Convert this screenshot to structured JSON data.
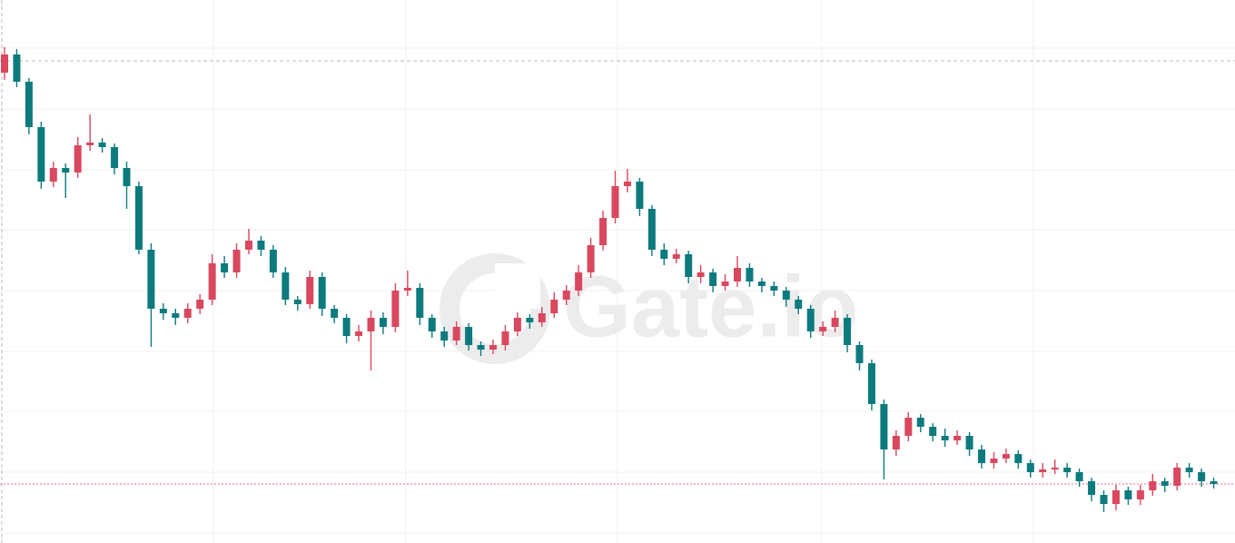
{
  "chart_data": {
    "type": "candlestick",
    "watermark": "Gate.io",
    "up_color": "#d9485f",
    "down_color": "#0d7b7e",
    "grid": true,
    "ylim": [
      0,
      598
    ],
    "yticks": [
      545,
      478,
      411,
      345,
      278,
      211,
      145,
      78,
      11
    ],
    "high_line": 531,
    "last_line": 65,
    "ohlc": [
      [
        518,
        546,
        510,
        538
      ],
      [
        538,
        544,
        502,
        508
      ],
      [
        508,
        512,
        450,
        458
      ],
      [
        458,
        464,
        390,
        398
      ],
      [
        398,
        420,
        392,
        413
      ],
      [
        413,
        418,
        380,
        408
      ],
      [
        408,
        447,
        402,
        438
      ],
      [
        438,
        472,
        432,
        441
      ],
      [
        441,
        446,
        430,
        436
      ],
      [
        436,
        440,
        406,
        413
      ],
      [
        413,
        420,
        368,
        393
      ],
      [
        393,
        398,
        318,
        323
      ],
      [
        323,
        330,
        216,
        258
      ],
      [
        258,
        264,
        246,
        253
      ],
      [
        253,
        258,
        240,
        248
      ],
      [
        248,
        264,
        242,
        258
      ],
      [
        258,
        274,
        252,
        268
      ],
      [
        268,
        318,
        262,
        308
      ],
      [
        308,
        316,
        292,
        298
      ],
      [
        298,
        330,
        292,
        323
      ],
      [
        323,
        346,
        318,
        333
      ],
      [
        333,
        338,
        316,
        323
      ],
      [
        323,
        328,
        292,
        298
      ],
      [
        298,
        304,
        262,
        268
      ],
      [
        268,
        272,
        256,
        263
      ],
      [
        263,
        300,
        258,
        293
      ],
      [
        293,
        298,
        250,
        258
      ],
      [
        258,
        262,
        242,
        248
      ],
      [
        248,
        252,
        220,
        228
      ],
      [
        228,
        240,
        222,
        233
      ],
      [
        233,
        256,
        190,
        248
      ],
      [
        248,
        254,
        230,
        238
      ],
      [
        238,
        286,
        232,
        278
      ],
      [
        278,
        300,
        272,
        281
      ],
      [
        281,
        286,
        240,
        248
      ],
      [
        248,
        252,
        226,
        233
      ],
      [
        233,
        238,
        216,
        223
      ],
      [
        223,
        244,
        218,
        238
      ],
      [
        238,
        242,
        212,
        218
      ],
      [
        218,
        222,
        206,
        213
      ],
      [
        213,
        224,
        208,
        218
      ],
      [
        218,
        240,
        212,
        233
      ],
      [
        233,
        254,
        228,
        248
      ],
      [
        248,
        252,
        236,
        243
      ],
      [
        243,
        260,
        238,
        253
      ],
      [
        253,
        276,
        248,
        268
      ],
      [
        268,
        284,
        262,
        278
      ],
      [
        278,
        306,
        272,
        298
      ],
      [
        298,
        336,
        292,
        328
      ],
      [
        328,
        366,
        322,
        358
      ],
      [
        358,
        410,
        352,
        393
      ],
      [
        393,
        412,
        386,
        398
      ],
      [
        398,
        402,
        360,
        368
      ],
      [
        368,
        372,
        316,
        323
      ],
      [
        323,
        330,
        306,
        313
      ],
      [
        313,
        324,
        308,
        318
      ],
      [
        318,
        322,
        286,
        293
      ],
      [
        293,
        306,
        286,
        298
      ],
      [
        298,
        302,
        276,
        283
      ],
      [
        283,
        296,
        278,
        288
      ],
      [
        288,
        316,
        282,
        303
      ],
      [
        303,
        308,
        282,
        288
      ],
      [
        288,
        292,
        276,
        283
      ],
      [
        283,
        288,
        272,
        278
      ],
      [
        278,
        282,
        260,
        268
      ],
      [
        268,
        272,
        252,
        258
      ],
      [
        258,
        262,
        226,
        233
      ],
      [
        233,
        244,
        228,
        238
      ],
      [
        238,
        256,
        232,
        248
      ],
      [
        248,
        252,
        210,
        218
      ],
      [
        218,
        222,
        190,
        198
      ],
      [
        198,
        202,
        146,
        153
      ],
      [
        153,
        158,
        70,
        103
      ],
      [
        103,
        124,
        96,
        118
      ],
      [
        118,
        144,
        112,
        138
      ],
      [
        138,
        142,
        122,
        128
      ],
      [
        128,
        132,
        112,
        118
      ],
      [
        118,
        126,
        106,
        113
      ],
      [
        113,
        124,
        108,
        118
      ],
      [
        118,
        122,
        96,
        103
      ],
      [
        103,
        108,
        82,
        88
      ],
      [
        88,
        100,
        82,
        93
      ],
      [
        93,
        104,
        88,
        98
      ],
      [
        98,
        102,
        82,
        88
      ],
      [
        88,
        92,
        72,
        78
      ],
      [
        78,
        88,
        72,
        81
      ],
      [
        81,
        92,
        76,
        83
      ],
      [
        83,
        88,
        72,
        78
      ],
      [
        78,
        82,
        62,
        68
      ],
      [
        68,
        72,
        46,
        53
      ],
      [
        53,
        58,
        34,
        43
      ],
      [
        43,
        64,
        36,
        58
      ],
      [
        58,
        62,
        42,
        48
      ],
      [
        48,
        64,
        42,
        58
      ],
      [
        58,
        76,
        52,
        68
      ],
      [
        68,
        72,
        56,
        63
      ],
      [
        63,
        88,
        58,
        83
      ],
      [
        83,
        88,
        72,
        78
      ],
      [
        78,
        82,
        62,
        68
      ],
      [
        68,
        72,
        60,
        65
      ]
    ]
  }
}
